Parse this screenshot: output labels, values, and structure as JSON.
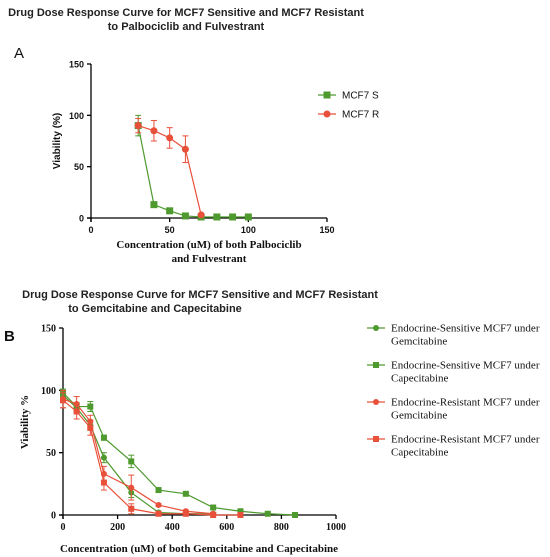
{
  "chart_data": [
    {
      "panel": "A",
      "type": "line",
      "title_lines": [
        "Drug Dose Response Curve for MCF7 Sensitive and MCF7 Resistant",
        "to Palbociclib and Fulvestrant"
      ],
      "xlabel_lines": [
        "Concentration (uM) of both Palbociclib",
        "and Fulvestrant"
      ],
      "ylabel": "Viability (%)",
      "xlim": [
        0,
        150
      ],
      "ylim": [
        0,
        150
      ],
      "xticks": [
        0,
        50,
        100,
        150
      ],
      "yticks": [
        0,
        50,
        100,
        150
      ],
      "grid": false,
      "legend": "right",
      "series": [
        {
          "name": "MCF7 S",
          "marker": "square",
          "color": "#4e9a2f",
          "x": [
            30,
            40,
            50,
            60,
            70,
            80,
            90,
            100
          ],
          "y": [
            90,
            13,
            7,
            2,
            1,
            1,
            1,
            1
          ],
          "err": [
            10,
            1,
            1,
            1,
            0.5,
            0.5,
            0.5,
            0.5
          ]
        },
        {
          "name": "MCF7 R",
          "marker": "circle",
          "color": "#e8503a",
          "x": [
            30,
            40,
            50,
            60,
            70
          ],
          "y": [
            90,
            85,
            78,
            67,
            3
          ],
          "err": [
            7,
            10,
            10,
            13,
            1
          ]
        }
      ]
    },
    {
      "panel": "B",
      "type": "line",
      "title_lines": [
        "Drug Dose Response Curve for MCF7 Sensitive and MCF7 Resistant",
        "to Gemcitabine and Capecitabine"
      ],
      "xlabel_lines": [
        "Concentration (uM) of both Gemcitabine and Capecitabine"
      ],
      "ylabel": "Viability %",
      "xlim": [
        0,
        1000
      ],
      "ylim": [
        0,
        150
      ],
      "xticks": [
        0,
        200,
        400,
        600,
        800,
        1000
      ],
      "yticks": [
        0,
        50,
        100,
        150
      ],
      "grid": false,
      "legend": "right",
      "series": [
        {
          "name_lines": [
            "Endocrine-Sensitive MCF7 under",
            "Gemcitabine"
          ],
          "marker": "circle",
          "color": "#4e9a2f",
          "x": [
            0,
            50,
            100,
            150,
            250,
            350,
            450,
            550
          ],
          "y": [
            96,
            86,
            72,
            46,
            18,
            2,
            1,
            1
          ],
          "err": [
            4,
            4,
            4,
            4,
            4,
            1,
            1,
            1
          ]
        },
        {
          "name_lines": [
            "Endocrine-Sensitive MCF7 under",
            "Capecitabine"
          ],
          "marker": "square",
          "color": "#4e9a2f",
          "x": [
            0,
            50,
            100,
            150,
            250,
            350,
            450,
            550,
            650,
            750,
            850
          ],
          "y": [
            98,
            87,
            87,
            62,
            43,
            20,
            17,
            6,
            3,
            1,
            0
          ],
          "err": [
            3,
            3,
            4,
            2,
            5,
            1,
            1,
            1,
            1,
            1,
            1
          ]
        },
        {
          "name_lines": [
            "Endocrine-Resistant MCF7 under",
            "Gemcitabine"
          ],
          "marker": "circle",
          "color": "#e8503a",
          "x": [
            0,
            50,
            100,
            150,
            250,
            350,
            450,
            550
          ],
          "y": [
            93,
            89,
            75,
            33,
            22,
            8,
            3,
            1
          ],
          "err": [
            7,
            6,
            5,
            6,
            10,
            1,
            1,
            1
          ]
        },
        {
          "name_lines": [
            "Endocrine-Resistant MCF7 under",
            "Capecitabine"
          ],
          "marker": "square",
          "color": "#e8503a",
          "x": [
            0,
            50,
            100,
            150,
            250,
            350,
            450,
            550,
            650
          ],
          "y": [
            92,
            83,
            70,
            26,
            5,
            1,
            1,
            0,
            0
          ],
          "err": [
            6,
            6,
            6,
            6,
            4,
            1,
            1,
            1,
            1
          ]
        }
      ]
    }
  ]
}
